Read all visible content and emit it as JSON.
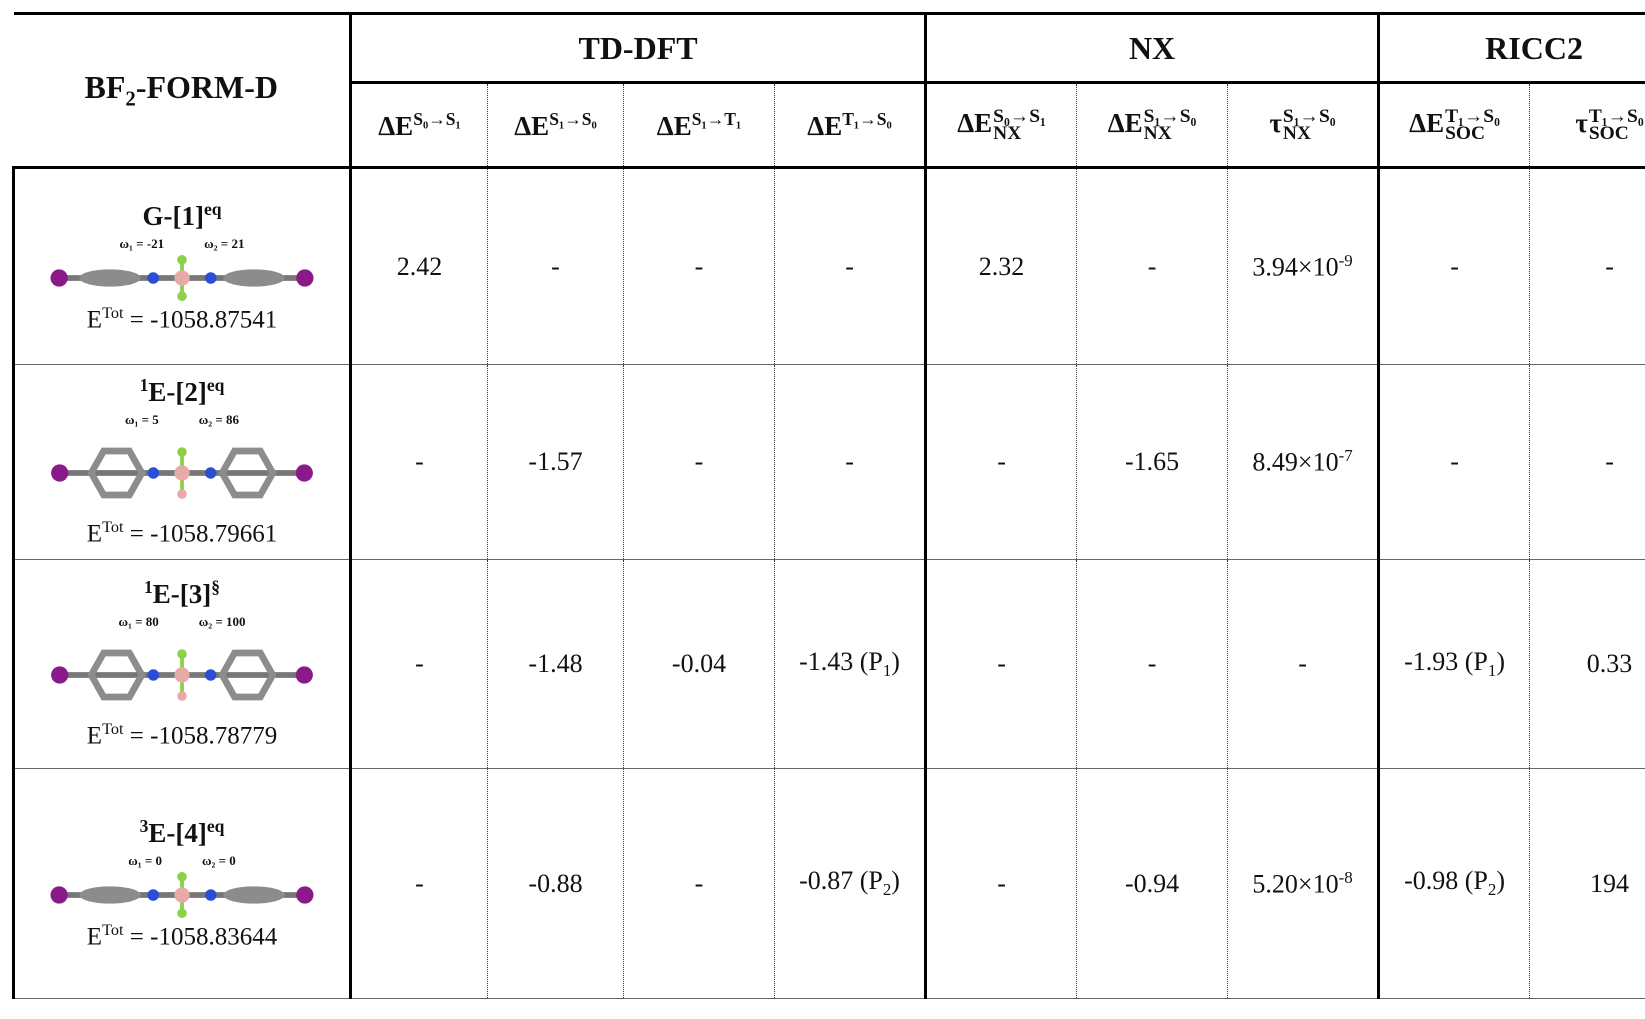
{
  "header": {
    "title": {
      "base": "BF",
      "sub": "2",
      "after": "-FORM-D"
    },
    "groups": [
      "TD-DFT",
      "NX",
      "RICC2"
    ],
    "columns": [
      {
        "base": "ΔE",
        "sup": "S₀→S₁"
      },
      {
        "base": "ΔE",
        "sup": "S₁→S₀"
      },
      {
        "base": "ΔE",
        "sup": "S₁→T₁"
      },
      {
        "base": "ΔE",
        "sup": "T₁→S₀"
      },
      {
        "base": "ΔE",
        "sup": "S₀→S₁",
        "sub": "NX"
      },
      {
        "base": "ΔE",
        "sup": "S₁→S₀",
        "sub": "NX"
      },
      {
        "base": "τ",
        "sup": "S₁→S₀",
        "sub": "NX"
      },
      {
        "base": "ΔE",
        "sup": "T₁→S₀",
        "sub": "SOC"
      },
      {
        "base": "τ",
        "sup": "T₁→S₀",
        "sub": "SOC"
      }
    ]
  },
  "rows": [
    {
      "label": {
        "base": "G-[1]",
        "sup": "eq"
      },
      "omega1": "ω₁ = -21",
      "omega2": "ω₂ = 21",
      "energy": {
        "base": "E",
        "sup": "Tot",
        "after": " = -1058.87541"
      },
      "cells": [
        "2.42",
        "-",
        "-",
        "-",
        "2.32",
        "-",
        {
          "base": "3.94×10",
          "sup": "-9"
        },
        "-",
        "-"
      ]
    },
    {
      "label": {
        "pre": "1",
        "base": "E-[2]",
        "sup": "eq"
      },
      "omega1": "ω₁ = 5",
      "omega2": "ω₂ = 86",
      "energy": {
        "base": "E",
        "sup": "Tot",
        "after": " = -1058.79661"
      },
      "cells": [
        "-",
        "-1.57",
        "-",
        "-",
        "-",
        "-1.65",
        {
          "base": "8.49×10",
          "sup": "-7"
        },
        "-",
        "-"
      ]
    },
    {
      "label": {
        "pre": "1",
        "base": "E-[3]",
        "sup": "§"
      },
      "omega1": "ω₁ = 80",
      "omega2": "ω₂ = 100",
      "energy": {
        "base": "E",
        "sup": "Tot",
        "after": " = -1058.78779"
      },
      "cells": [
        "-",
        "-1.48",
        "-0.04",
        {
          "base": "-1.43 (P",
          "sub": "1",
          "after": ")"
        },
        "-",
        "-",
        "-",
        {
          "base": "-1.93 (P",
          "sub": "1",
          "after": ")"
        },
        "0.33"
      ]
    },
    {
      "label": {
        "pre": "3",
        "base": "E-[4]",
        "sup": "eq"
      },
      "omega1": "ω₁ = 0",
      "omega2": "ω₂ = 0",
      "energy": {
        "base": "E",
        "sup": "Tot",
        "after": " = -1058.83644"
      },
      "cells": [
        "-",
        "-0.88",
        "-",
        {
          "base": "-0.87 (P",
          "sub": "2",
          "after": ")"
        },
        "-",
        "-0.94",
        {
          "base": "5.20×10",
          "sup": "-8"
        },
        {
          "base": "-0.98 (P",
          "sub": "2",
          "after": ")"
        },
        "194"
      ]
    }
  ]
}
